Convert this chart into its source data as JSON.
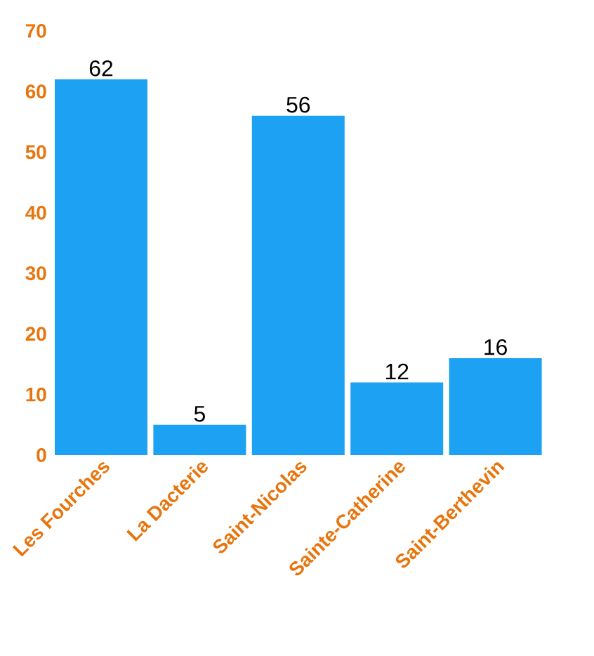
{
  "chart_data": {
    "type": "bar",
    "categories": [
      "Les Fourches",
      "La Dacterie",
      "Saint-Nicolas",
      "Sainte-Catherine",
      "Saint-Berthevin"
    ],
    "values": [
      62,
      5,
      56,
      12,
      16
    ],
    "color": "#1da1f2",
    "ylim": [
      0,
      70
    ],
    "yticks": [
      0,
      10,
      20,
      30,
      40,
      50,
      60,
      70
    ],
    "data_labels": true
  }
}
